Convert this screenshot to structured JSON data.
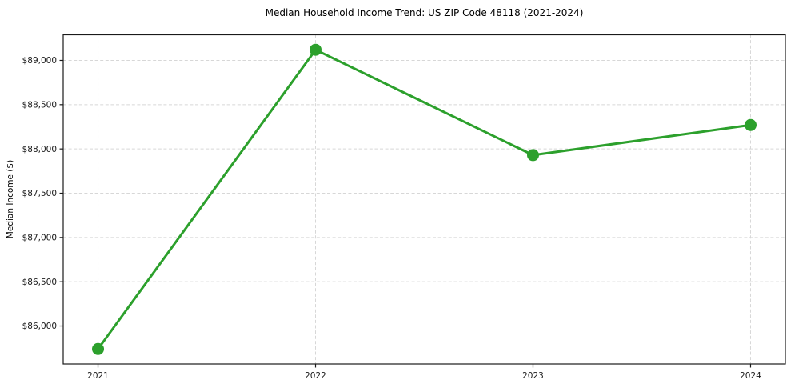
{
  "page": {
    "background": "#ffffff"
  },
  "chart_data": {
    "type": "line",
    "title": "Median Household Income Trend: US ZIP Code 48118 (2021-2024)",
    "xlabel": "",
    "ylabel": "Median Income ($)",
    "categories": [
      "2021",
      "2022",
      "2023",
      "2024"
    ],
    "x": [
      2021,
      2022,
      2023,
      2024
    ],
    "series": [
      {
        "name": "Median Household Income",
        "values": [
          85740,
          89120,
          87930,
          88270
        ],
        "color": "#2ca02c",
        "marker": "circle",
        "marker_radius": 7.5,
        "line_width": 3
      }
    ],
    "xlim": [
      2020.84,
      2024.16
    ],
    "ylim": [
      85571,
      89289
    ],
    "xticks": [
      2021,
      2022,
      2023,
      2024
    ],
    "xtick_labels": [
      "2021",
      "2022",
      "2023",
      "2024"
    ],
    "yticks": [
      86000,
      86500,
      87000,
      87500,
      88000,
      88500,
      89000
    ],
    "ytick_labels": [
      "$86,000",
      "$86,500",
      "$87,000",
      "$87,500",
      "$88,000",
      "$88,500",
      "$89,000"
    ],
    "grid": true,
    "grid_style": "dashed",
    "legend_position": "none",
    "colors": {
      "line": "#2ca02c",
      "grid": "#d7d7d7",
      "spine": "#1a1a1a",
      "tick_label": "#1a1a1a",
      "title": "#000000"
    }
  }
}
